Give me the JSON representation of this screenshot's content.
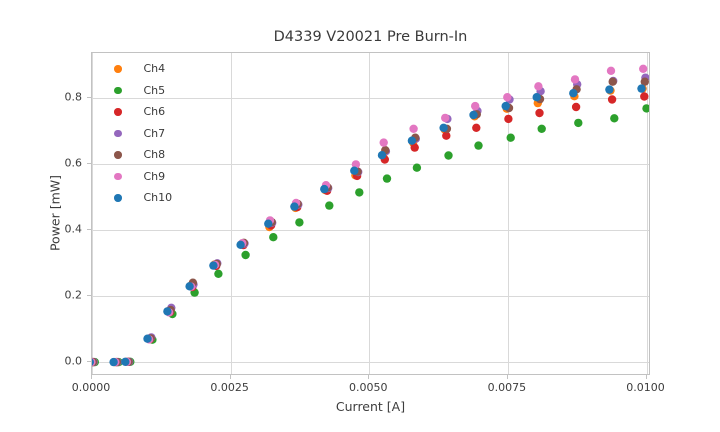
{
  "chart_data": {
    "type": "scatter",
    "title": "D4339 V20021 Pre Burn-In",
    "xlabel": "Current [A]",
    "ylabel": "Power [mW]",
    "xlim": [
      0.0,
      0.010045
    ],
    "ylim": [
      -0.036,
      0.938
    ],
    "grid": true,
    "legend_position": "upper left",
    "xticks": {
      "values": [
        0.0,
        0.0025,
        0.005,
        0.0075,
        0.01
      ],
      "labels": [
        "0.0000",
        "0.0025",
        "0.0050",
        "0.0075",
        "0.0100"
      ]
    },
    "yticks": {
      "values": [
        0.0,
        0.2,
        0.4,
        0.6,
        0.8
      ],
      "labels": [
        "0.0",
        "0.2",
        "0.4",
        "0.6",
        "0.8"
      ]
    },
    "x": [
      0.0,
      0.00043,
      0.00064,
      0.00104,
      0.0014,
      0.0018,
      0.00223,
      0.00272,
      0.00322,
      0.00369,
      0.00423,
      0.00477,
      0.00527,
      0.00581,
      0.00638,
      0.00692,
      0.0075,
      0.00806,
      0.00872,
      0.00937,
      0.00995
    ],
    "series": [
      {
        "name": "Ch4",
        "color": "#ff7f0e",
        "x_offset": -2e-05,
        "values": [
          0.0,
          0.0,
          0.001,
          0.071,
          0.155,
          0.232,
          0.296,
          0.358,
          0.41,
          0.468,
          0.522,
          0.567,
          0.627,
          0.666,
          0.706,
          0.746,
          0.769,
          0.786,
          0.807,
          0.824,
          0.83
        ]
      },
      {
        "name": "Ch5",
        "color": "#2ca02c",
        "x_offset": 5e-05,
        "values": [
          0.0,
          0.0,
          0.001,
          0.068,
          0.146,
          0.211,
          0.268,
          0.325,
          0.379,
          0.424,
          0.475,
          0.515,
          0.557,
          0.59,
          0.627,
          0.657,
          0.681,
          0.708,
          0.726,
          0.74,
          0.77
        ]
      },
      {
        "name": "Ch6",
        "color": "#d62728",
        "x_offset": 1e-05,
        "values": [
          0.0,
          0.0,
          0.001,
          0.07,
          0.152,
          0.228,
          0.292,
          0.355,
          0.415,
          0.47,
          0.52,
          0.565,
          0.615,
          0.651,
          0.687,
          0.711,
          0.738,
          0.756,
          0.774,
          0.797,
          0.806
        ]
      },
      {
        "name": "Ch7",
        "color": "#9467bd",
        "x_offset": 3e-05,
        "values": [
          0.0,
          0.0,
          0.001,
          0.075,
          0.165,
          0.236,
          0.3,
          0.36,
          0.423,
          0.478,
          0.528,
          0.577,
          0.64,
          0.678,
          0.738,
          0.762,
          0.797,
          0.822,
          0.843,
          0.853,
          0.863
        ]
      },
      {
        "name": "Ch8",
        "color": "#8c564b",
        "x_offset": 2e-05,
        "values": [
          0.0,
          0.0,
          0.001,
          0.072,
          0.158,
          0.241,
          0.298,
          0.362,
          0.425,
          0.48,
          0.53,
          0.578,
          0.643,
          0.681,
          0.708,
          0.752,
          0.771,
          0.798,
          0.828,
          0.851,
          0.851
        ]
      },
      {
        "name": "Ch9",
        "color": "#e377c2",
        "x_offset": -1e-05,
        "values": [
          0.0,
          0.0,
          0.001,
          0.069,
          0.151,
          0.229,
          0.295,
          0.361,
          0.43,
          0.483,
          0.537,
          0.6,
          0.666,
          0.708,
          0.741,
          0.777,
          0.804,
          0.837,
          0.858,
          0.884,
          0.89
        ]
      },
      {
        "name": "Ch10",
        "color": "#1f77b4",
        "x_offset": -4e-05,
        "values": [
          0.0,
          0.0,
          0.001,
          0.071,
          0.154,
          0.23,
          0.293,
          0.356,
          0.42,
          0.472,
          0.525,
          0.581,
          0.628,
          0.672,
          0.711,
          0.75,
          0.777,
          0.804,
          0.816,
          0.827,
          0.83
        ]
      }
    ],
    "style_colors": {
      "grid": "#d9d9d9",
      "spine": "#c2c2c2",
      "text": "#3a3a3a"
    }
  }
}
